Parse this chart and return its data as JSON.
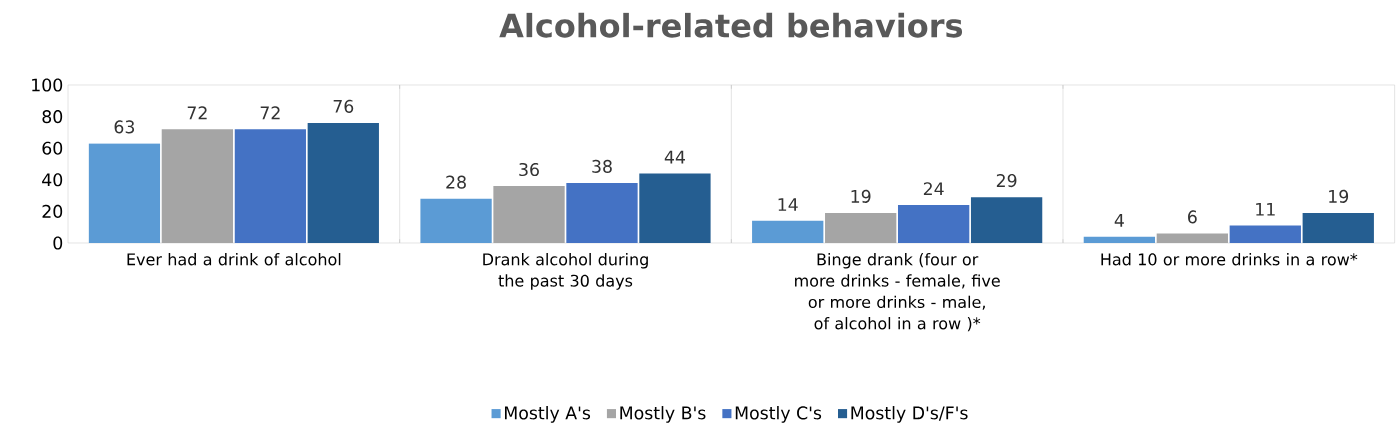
{
  "chart_data": {
    "type": "bar",
    "title": "Alcohol-related behaviors",
    "categories": [
      "Ever had a drink of alcohol",
      "Drank alcohol during the past 30 days",
      "Binge drank (four or more drinks - female, five or more drinks - male, of alcohol in a row )*",
      "Had 10 or more drinks in a row*"
    ],
    "series": [
      {
        "name": "Mostly A's",
        "color": "#5b9bd5",
        "values": [
          63,
          28,
          14,
          4
        ]
      },
      {
        "name": "Mostly B's",
        "color": "#a5a5a5",
        "values": [
          72,
          36,
          19,
          6
        ]
      },
      {
        "name": "Mostly C's",
        "color": "#4472c4",
        "values": [
          72,
          38,
          24,
          11
        ]
      },
      {
        "name": "Mostly D's/F's",
        "color": "#255e91",
        "values": [
          76,
          44,
          29,
          19
        ]
      }
    ],
    "ylim": [
      0,
      100
    ],
    "yticks": [
      0,
      20,
      40,
      60,
      80,
      100
    ],
    "grid": "x",
    "legend": "bottom",
    "data_labels": true
  }
}
